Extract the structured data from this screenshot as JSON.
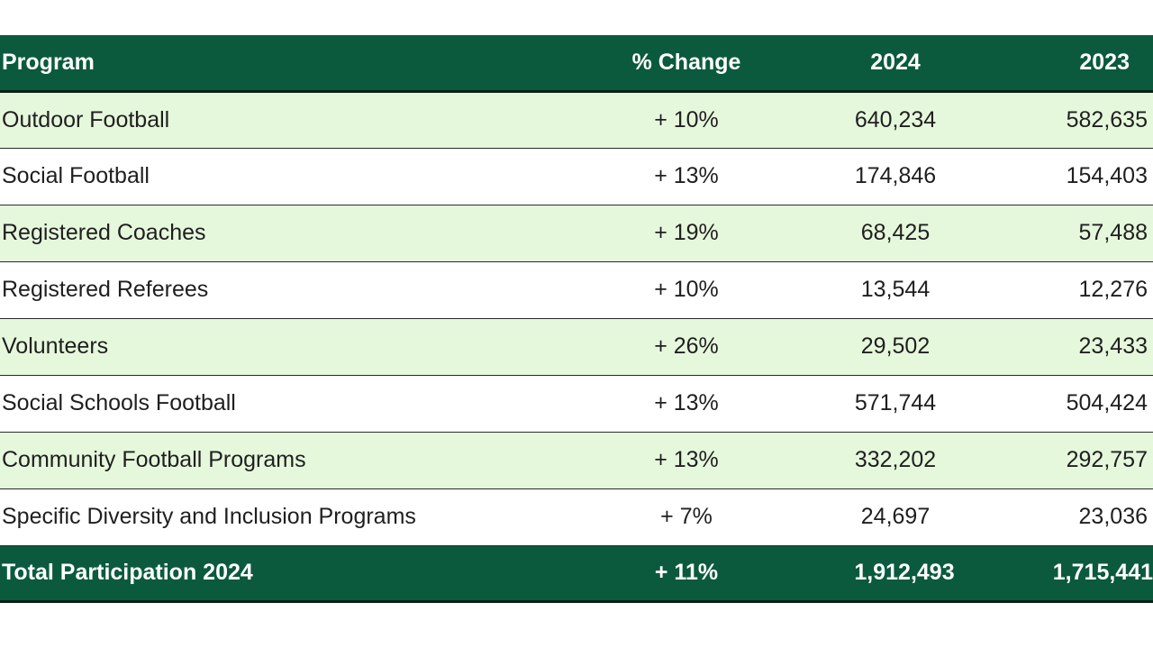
{
  "table": {
    "headers": {
      "program": "Program",
      "change": "% Change",
      "year_2024": "2024",
      "year_2023": "2023"
    },
    "rows": [
      {
        "program": "Outdoor Football",
        "change": "+ 10%",
        "y2024": "640,234",
        "y2023": "582,635"
      },
      {
        "program": "Social Football",
        "change": "+ 13%",
        "y2024": "174,846",
        "y2023": "154,403"
      },
      {
        "program": "Registered Coaches",
        "change": "+ 19%",
        "y2024": "68,425",
        "y2023": "57,488"
      },
      {
        "program": "Registered Referees",
        "change": "+ 10%",
        "y2024": "13,544",
        "y2023": "12,276"
      },
      {
        "program": "Volunteers",
        "change": "+ 26%",
        "y2024": "29,502",
        "y2023": "23,433"
      },
      {
        "program": "Social Schools Football",
        "change": "+ 13%",
        "y2024": "571,744",
        "y2023": "504,424"
      },
      {
        "program": "Community Football Programs",
        "change": "+ 13%",
        "y2024": "332,202",
        "y2023": "292,757"
      },
      {
        "program": "Specific Diversity and Inclusion Programs",
        "change": "+ 7%",
        "y2024": "24,697",
        "y2023": "23,036"
      }
    ],
    "total": {
      "program": "Total Participation 2024",
      "change": "+ 11%",
      "y2024": "1,912,493",
      "y2023": "1,715,441"
    }
  },
  "colors": {
    "header_bg": "#0b5a3e",
    "row_shaded": "#e6f8dc",
    "row_plain": "#ffffff"
  }
}
